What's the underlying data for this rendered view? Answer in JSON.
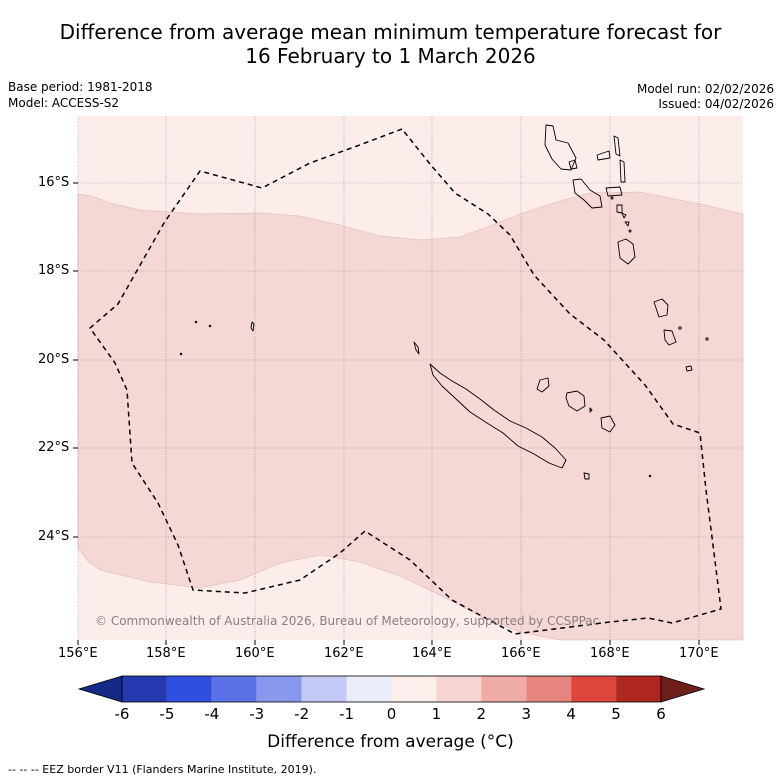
{
  "title": {
    "line1": "Difference from average mean minimum temperature forecast for",
    "line2": "16 February to 1 March 2026"
  },
  "meta": {
    "base_period": "Base period: 1981-2018",
    "model": "Model: ACCESS-S2",
    "model_run": "Model run: 02/02/2026",
    "issued": "Issued: 04/02/2026"
  },
  "map": {
    "lat_labels": [
      "16°S",
      "18°S",
      "20°S",
      "22°S",
      "24°S"
    ],
    "lon_labels": [
      "156°E",
      "158°E",
      "160°E",
      "162°E",
      "164°E",
      "166°E",
      "168°E",
      "170°E"
    ],
    "copyright": "© Commonwealth of Australia 2026, Bureau of Meteorology, supported by CCSPPac",
    "colors": {
      "anomaly_0_1": "#fcecea",
      "anomaly_1_2": "#f5d7d5",
      "grid": "#8a8a8a"
    }
  },
  "colorbar": {
    "ticks": [
      "-6",
      "-5",
      "-4",
      "-3",
      "-2",
      "-1",
      "0",
      "1",
      "2",
      "3",
      "4",
      "5",
      "6"
    ],
    "colors": [
      "#142a84",
      "#2539b0",
      "#2f4fe0",
      "#5a72e6",
      "#8898ec",
      "#c3c9f4",
      "#eaecfb",
      "#fdeeeb",
      "#f6d4d1",
      "#efaca7",
      "#e6847e",
      "#dc463c",
      "#ad2720",
      "#6e1e1b"
    ],
    "label": "Difference from average (°C)"
  },
  "footer": "--  --  -- EEZ border V11 (Flanders Marine Institute, 2019)."
}
